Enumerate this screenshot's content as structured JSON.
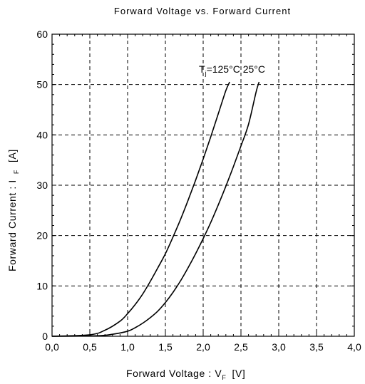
{
  "chart_data": {
    "type": "line",
    "title": "Forward Voltage  vs.  Forward Current",
    "xlabel": "Forward Voltage  :  V",
    "xlabel_subscript": "F",
    "xlabel_unit": "[V]",
    "ylabel": "Forward Current  :  I",
    "ylabel_subscript": "F",
    "ylabel_unit": "[A]",
    "xlim": [
      0,
      4
    ],
    "ylim": [
      0,
      60
    ],
    "x_ticks": [
      "0,0",
      "0,5",
      "1,0",
      "1,5",
      "2,0",
      "2,5",
      "3,0",
      "3,5",
      "4,0"
    ],
    "x_tick_values": [
      0,
      0.5,
      1.0,
      1.5,
      2.0,
      2.5,
      3.0,
      3.5,
      4.0
    ],
    "y_ticks": [
      "0",
      "10",
      "20",
      "30",
      "40",
      "50",
      "60"
    ],
    "y_tick_values": [
      0,
      10,
      20,
      30,
      40,
      50,
      60
    ],
    "grid": true,
    "annotation": {
      "prefix": "T",
      "subscript": "j",
      "text": "=125°C 25°C"
    },
    "series": [
      {
        "x": [
          0.0,
          0.5,
          0.7,
          0.9,
          1.0,
          1.1,
          1.2,
          1.3,
          1.4,
          1.5,
          1.6,
          1.7,
          1.8,
          1.9,
          2.0,
          2.1,
          2.2,
          2.3,
          2.35
        ],
        "y": [
          0.0,
          0.3,
          1.2,
          3.0,
          4.5,
          6.3,
          8.4,
          10.9,
          13.6,
          16.4,
          19.7,
          23.2,
          27.0,
          31.0,
          35.2,
          39.6,
          44.2,
          48.8,
          50.5
        ]
      },
      {
        "x": [
          0.0,
          0.6,
          0.8,
          1.0,
          1.1,
          1.2,
          1.3,
          1.4,
          1.5,
          1.6,
          1.7,
          1.8,
          1.9,
          2.0,
          2.1,
          2.2,
          2.3,
          2.4,
          2.5,
          2.6,
          2.7,
          2.74
        ],
        "y": [
          0.0,
          0.1,
          0.4,
          1.0,
          1.7,
          2.6,
          3.7,
          5.0,
          6.7,
          8.7,
          11.0,
          13.6,
          16.4,
          19.4,
          22.6,
          26.1,
          29.8,
          33.7,
          37.8,
          42.1,
          48.5,
          50.5
        ]
      }
    ]
  }
}
